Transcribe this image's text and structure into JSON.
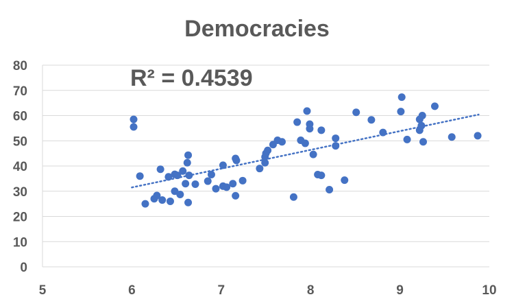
{
  "colors": {
    "series": "#4472c4",
    "text": "#595959",
    "grid": "#d9d9d9"
  },
  "chart_data": {
    "type": "scatter",
    "title": "Democracies",
    "xlabel": "",
    "ylabel": "",
    "xlim": [
      5,
      10
    ],
    "ylim": [
      0,
      80
    ],
    "x_ticks": [
      5,
      6,
      7,
      8,
      9,
      10
    ],
    "y_ticks": [
      0,
      10,
      20,
      30,
      40,
      50,
      60,
      70,
      80
    ],
    "grid": "horizontal",
    "legend": "none",
    "annotation": "R² = 0.4539",
    "trendline": {
      "type": "linear",
      "style": "dotted",
      "x_range": [
        6.0,
        9.88
      ],
      "y_range": [
        31.5,
        60.4
      ]
    },
    "series": [
      {
        "points": [
          [
            6.02,
            58.5
          ],
          [
            6.02,
            55.5
          ],
          [
            6.09,
            36.0
          ],
          [
            6.15,
            25.0
          ],
          [
            6.25,
            27.0
          ],
          [
            6.28,
            28.3
          ],
          [
            6.32,
            38.7
          ],
          [
            6.34,
            26.5
          ],
          [
            6.41,
            35.7
          ],
          [
            6.43,
            26.0
          ],
          [
            6.48,
            30.0
          ],
          [
            6.48,
            36.7
          ],
          [
            6.51,
            36.3
          ],
          [
            6.54,
            28.7
          ],
          [
            6.57,
            38.0
          ],
          [
            6.6,
            33.0
          ],
          [
            6.62,
            41.3
          ],
          [
            6.63,
            44.3
          ],
          [
            6.63,
            25.5
          ],
          [
            6.64,
            36.3
          ],
          [
            6.71,
            32.8
          ],
          [
            6.85,
            34.0
          ],
          [
            6.89,
            36.6
          ],
          [
            6.94,
            31.0
          ],
          [
            7.02,
            40.3
          ],
          [
            7.02,
            32.0
          ],
          [
            7.06,
            31.6
          ],
          [
            7.13,
            33.0
          ],
          [
            7.16,
            43.0
          ],
          [
            7.16,
            28.2
          ],
          [
            7.17,
            42.2
          ],
          [
            7.24,
            34.2
          ],
          [
            7.43,
            39.0
          ],
          [
            7.49,
            41.3
          ],
          [
            7.49,
            43.6
          ],
          [
            7.5,
            45.0
          ],
          [
            7.52,
            46.2
          ],
          [
            7.58,
            48.5
          ],
          [
            7.63,
            50.2
          ],
          [
            7.68,
            49.6
          ],
          [
            7.81,
            27.7
          ],
          [
            7.85,
            57.4
          ],
          [
            7.89,
            50.2
          ],
          [
            7.94,
            49.0
          ],
          [
            7.96,
            61.8
          ],
          [
            7.99,
            54.8
          ],
          [
            7.99,
            56.6
          ],
          [
            8.03,
            44.6
          ],
          [
            8.08,
            36.6
          ],
          [
            8.12,
            54.2
          ],
          [
            8.12,
            36.3
          ],
          [
            8.21,
            30.6
          ],
          [
            8.28,
            51.0
          ],
          [
            8.28,
            48.0
          ],
          [
            8.38,
            34.4
          ],
          [
            8.51,
            61.3
          ],
          [
            8.68,
            58.3
          ],
          [
            8.81,
            53.3
          ],
          [
            9.01,
            61.6
          ],
          [
            9.02,
            67.3
          ],
          [
            9.08,
            50.5
          ],
          [
            9.22,
            58.5
          ],
          [
            9.22,
            54.2
          ],
          [
            9.24,
            56.0
          ],
          [
            9.25,
            60.0
          ],
          [
            9.26,
            49.6
          ],
          [
            9.39,
            63.7
          ],
          [
            9.58,
            51.5
          ],
          [
            9.87,
            52.0
          ]
        ]
      }
    ]
  }
}
